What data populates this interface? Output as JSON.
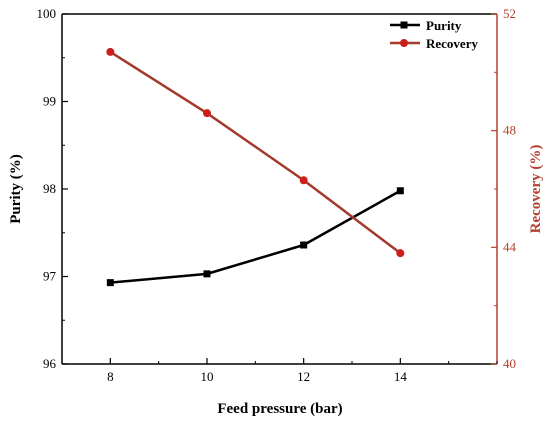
{
  "colors": {
    "purity": "#000000",
    "recovery": "#a33a2b",
    "recovery_marker": "#cc1f1a",
    "right_axis": "#b5402f"
  },
  "chart_data": {
    "type": "line",
    "x": [
      8,
      10,
      12,
      14
    ],
    "xlabel": "Feed pressure (bar)",
    "ylabel": "Purity (%)",
    "y2label": "Recovery (%)",
    "xlim": [
      7,
      16
    ],
    "ylim": [
      96,
      100
    ],
    "y2lim": [
      40,
      52
    ],
    "xticks": [
      "8",
      "10",
      "12",
      "14"
    ],
    "yticks": [
      "96",
      "97",
      "98",
      "99",
      "100"
    ],
    "y2ticks": [
      "40",
      "44",
      "48",
      "52"
    ],
    "grid": false,
    "legend": "top-right",
    "series": [
      {
        "name": "Purity",
        "axis": "left",
        "marker": "square",
        "values": [
          96.93,
          97.03,
          97.36,
          97.98
        ]
      },
      {
        "name": "Recovery",
        "axis": "right",
        "marker": "circle",
        "values": [
          50.7,
          48.6,
          46.3,
          43.8
        ]
      }
    ]
  }
}
